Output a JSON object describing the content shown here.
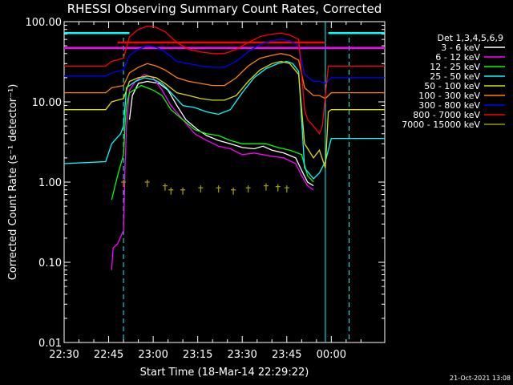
{
  "chart_data": {
    "type": "line",
    "title": "RHESSI Observing Summary Count Rates, Corrected",
    "ylabel": "Corrected Count Rate (s⁻¹ detector⁻¹)",
    "xlabel": "Start Time (18-Mar-14 22:29:22)",
    "y_scale": "log",
    "ylim": [
      0.01,
      100
    ],
    "xlim_minutes_after_22_30": [
      0,
      108
    ],
    "x_ticks": [
      {
        "t": 0,
        "label": "22:30"
      },
      {
        "t": 15,
        "label": "22:45"
      },
      {
        "t": 30,
        "label": "23:00"
      },
      {
        "t": 45,
        "label": "23:15"
      },
      {
        "t": 60,
        "label": "23:30"
      },
      {
        "t": 75,
        "label": "23:45"
      },
      {
        "t": 90,
        "label": "00:00"
      }
    ],
    "y_ticks": [
      {
        "v": 0.01,
        "label": "0.01"
      },
      {
        "v": 0.1,
        "label": "0.10"
      },
      {
        "v": 1,
        "label": "1.00"
      },
      {
        "v": 10,
        "label": "10.00"
      },
      {
        "v": 100,
        "label": "100.00"
      }
    ],
    "legend_title": "Det 1,3,4,5,6,9",
    "legend_position": "right",
    "dashed_markers_t": [
      20,
      96
    ],
    "solid_marker_t": 88,
    "flag_lines": [
      {
        "color": "#ff0000",
        "y": 55,
        "t_start": 18,
        "t_end": 88
      },
      {
        "color": "#ff00ff",
        "y": 47,
        "t_start": 0,
        "t_end": 108
      },
      {
        "color": "#00ffff",
        "y": 72,
        "t_start": 0,
        "t_end": 22
      },
      {
        "color": "#00ffff",
        "y": 72,
        "t_start": 89,
        "t_end": 108
      }
    ],
    "series": [
      {
        "name": "3 - 6 keV",
        "color": "#ffffff",
        "points": [
          [
            22,
            6
          ],
          [
            23,
            12
          ],
          [
            25,
            17
          ],
          [
            28,
            18
          ],
          [
            32,
            17
          ],
          [
            35,
            14
          ],
          [
            38,
            9
          ],
          [
            41,
            6
          ],
          [
            45,
            4.5
          ],
          [
            48,
            3.8
          ],
          [
            52,
            3.3
          ],
          [
            56,
            3
          ],
          [
            60,
            2.7
          ],
          [
            64,
            2.6
          ],
          [
            67,
            2.8
          ],
          [
            70,
            2.5
          ],
          [
            74,
            2.3
          ],
          [
            78,
            2.0
          ],
          [
            80,
            1.4
          ],
          [
            82,
            1.0
          ],
          [
            84,
            0.9
          ]
        ]
      },
      {
        "name": "6 - 12 keV",
        "color": "#ff00ff",
        "points": [
          [
            16,
            0.08
          ],
          [
            16.5,
            0.15
          ],
          [
            18,
            0.17
          ],
          [
            20,
            0.25
          ],
          [
            20.5,
            1.5
          ],
          [
            21,
            5
          ],
          [
            22,
            14
          ],
          [
            24,
            18
          ],
          [
            27,
            22
          ],
          [
            30,
            20
          ],
          [
            33,
            14
          ],
          [
            36,
            9
          ],
          [
            40,
            6
          ],
          [
            44,
            4
          ],
          [
            48,
            3.3
          ],
          [
            52,
            2.8
          ],
          [
            56,
            2.6
          ],
          [
            60,
            2.2
          ],
          [
            64,
            2.3
          ],
          [
            67,
            2.2
          ],
          [
            70,
            2.1
          ],
          [
            74,
            2.0
          ],
          [
            78,
            1.7
          ],
          [
            80,
            1.2
          ],
          [
            82,
            0.9
          ],
          [
            84,
            0.8
          ]
        ]
      },
      {
        "name": "12 - 25 keV",
        "color": "#00ff00",
        "points": [
          [
            16,
            0.6
          ],
          [
            18,
            1.2
          ],
          [
            20,
            2.2
          ],
          [
            20.5,
            5
          ],
          [
            21,
            9
          ],
          [
            22,
            13
          ],
          [
            26,
            16
          ],
          [
            30,
            14
          ],
          [
            33,
            12
          ],
          [
            36,
            8
          ],
          [
            40,
            6
          ],
          [
            44,
            4.5
          ],
          [
            48,
            4
          ],
          [
            52,
            3.8
          ],
          [
            56,
            3.3
          ],
          [
            60,
            3
          ],
          [
            64,
            3
          ],
          [
            68,
            3
          ],
          [
            72,
            2.7
          ],
          [
            76,
            2.5
          ],
          [
            80,
            2.2
          ],
          [
            82,
            1.2
          ],
          [
            84,
            1.0
          ]
        ]
      },
      {
        "name": "25 - 50 keV",
        "color": "#00ffff",
        "points": [
          [
            0,
            1.7
          ],
          [
            14,
            1.8
          ],
          [
            16,
            3
          ],
          [
            19,
            4
          ],
          [
            20,
            5
          ],
          [
            21,
            15
          ],
          [
            24,
            18
          ],
          [
            27,
            20
          ],
          [
            30,
            19
          ],
          [
            33,
            17
          ],
          [
            36,
            13
          ],
          [
            40,
            9
          ],
          [
            44,
            8.5
          ],
          [
            48,
            7.5
          ],
          [
            52,
            7
          ],
          [
            56,
            8
          ],
          [
            60,
            13
          ],
          [
            64,
            20
          ],
          [
            68,
            26
          ],
          [
            72,
            30
          ],
          [
            75,
            32
          ],
          [
            77,
            30
          ],
          [
            79,
            24
          ],
          [
            81,
            1.5
          ],
          [
            84,
            1.1
          ],
          [
            86,
            1.3
          ],
          [
            88,
            1.8
          ],
          [
            89,
            2.5
          ],
          [
            90,
            3.5
          ],
          [
            108,
            3.5
          ]
        ]
      },
      {
        "name": "50 - 100 keV",
        "color": "#dddd00",
        "points": [
          [
            0,
            8
          ],
          [
            14,
            8
          ],
          [
            16,
            10
          ],
          [
            20,
            11
          ],
          [
            22,
            18
          ],
          [
            25,
            20
          ],
          [
            28,
            21
          ],
          [
            31,
            20
          ],
          [
            34,
            17
          ],
          [
            38,
            13
          ],
          [
            42,
            12
          ],
          [
            46,
            11
          ],
          [
            50,
            10.5
          ],
          [
            54,
            10.5
          ],
          [
            58,
            12
          ],
          [
            62,
            18
          ],
          [
            66,
            25
          ],
          [
            70,
            30
          ],
          [
            73,
            32
          ],
          [
            76,
            30
          ],
          [
            79,
            22
          ],
          [
            81,
            3
          ],
          [
            84,
            2
          ],
          [
            86,
            2.5
          ],
          [
            88,
            1.5
          ],
          [
            89,
            7.5
          ],
          [
            90,
            8
          ],
          [
            108,
            8
          ]
        ]
      },
      {
        "name": "100 - 300 keV",
        "color": "#ff8000",
        "points": [
          [
            0,
            13
          ],
          [
            14,
            13
          ],
          [
            16,
            15
          ],
          [
            20,
            16
          ],
          [
            22,
            23
          ],
          [
            25,
            27
          ],
          [
            28,
            30
          ],
          [
            31,
            28
          ],
          [
            34,
            25
          ],
          [
            38,
            20
          ],
          [
            42,
            18
          ],
          [
            46,
            17
          ],
          [
            50,
            16
          ],
          [
            54,
            16
          ],
          [
            58,
            20
          ],
          [
            62,
            28
          ],
          [
            66,
            35
          ],
          [
            70,
            38
          ],
          [
            73,
            40
          ],
          [
            76,
            38
          ],
          [
            79,
            33
          ],
          [
            81,
            15
          ],
          [
            84,
            12
          ],
          [
            86,
            12
          ],
          [
            88,
            11
          ],
          [
            90,
            13
          ],
          [
            108,
            13
          ]
        ]
      },
      {
        "name": "300 - 800 keV",
        "color": "#0000ff",
        "points": [
          [
            0,
            21
          ],
          [
            14,
            21
          ],
          [
            16,
            23
          ],
          [
            20,
            25
          ],
          [
            22,
            38
          ],
          [
            25,
            45
          ],
          [
            28,
            50
          ],
          [
            31,
            48
          ],
          [
            34,
            42
          ],
          [
            38,
            32
          ],
          [
            42,
            30
          ],
          [
            46,
            28
          ],
          [
            50,
            27
          ],
          [
            54,
            27
          ],
          [
            58,
            32
          ],
          [
            62,
            42
          ],
          [
            66,
            52
          ],
          [
            70,
            58
          ],
          [
            73,
            60
          ],
          [
            76,
            58
          ],
          [
            79,
            50
          ],
          [
            81,
            22
          ],
          [
            84,
            18
          ],
          [
            86,
            18
          ],
          [
            88,
            17
          ],
          [
            90,
            20
          ],
          [
            108,
            20
          ]
        ]
      },
      {
        "name": "800 - 7000 keV",
        "color": "#ff0000",
        "points": [
          [
            0,
            28
          ],
          [
            14,
            28
          ],
          [
            16,
            32
          ],
          [
            20,
            35
          ],
          [
            22,
            65
          ],
          [
            25,
            80
          ],
          [
            28,
            88
          ],
          [
            31,
            85
          ],
          [
            34,
            75
          ],
          [
            38,
            55
          ],
          [
            42,
            45
          ],
          [
            46,
            42
          ],
          [
            50,
            40
          ],
          [
            54,
            40
          ],
          [
            58,
            45
          ],
          [
            62,
            55
          ],
          [
            66,
            65
          ],
          [
            70,
            70
          ],
          [
            73,
            72
          ],
          [
            76,
            68
          ],
          [
            79,
            60
          ],
          [
            81,
            8
          ],
          [
            82,
            6
          ],
          [
            84,
            5
          ],
          [
            86,
            4
          ],
          [
            87,
            5
          ],
          [
            89,
            28
          ],
          [
            108,
            28
          ]
        ]
      },
      {
        "name": "7000 - 15000 keV",
        "color": "#999900",
        "points": [
          [
            20,
            1.0
          ],
          [
            28,
            1.0
          ],
          [
            34,
            0.9
          ],
          [
            36,
            0.8
          ],
          [
            40,
            0.8
          ],
          [
            46,
            0.85
          ],
          [
            52,
            0.85
          ],
          [
            57,
            0.8
          ],
          [
            62,
            0.85
          ],
          [
            68,
            0.9
          ],
          [
            72,
            0.88
          ],
          [
            75,
            0.85
          ]
        ]
      }
    ]
  },
  "footer": {
    "date_stamp": "21-Oct-2021 13:08"
  }
}
